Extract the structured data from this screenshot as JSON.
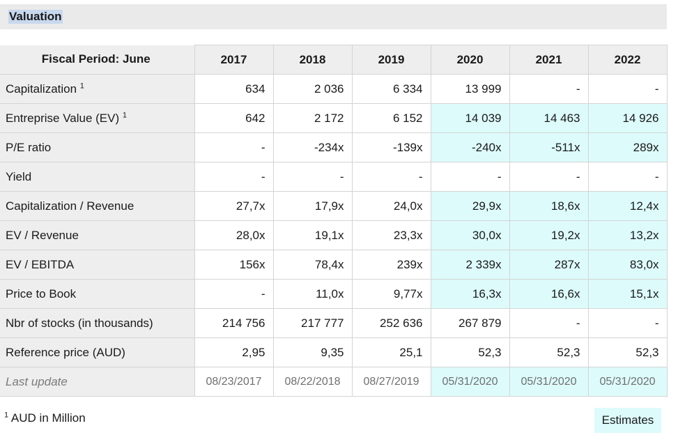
{
  "title": "Valuation",
  "fiscal_period_label": "Fiscal Period:",
  "fiscal_period_value": "June",
  "years": [
    "2017",
    "2018",
    "2019",
    "2020",
    "2021",
    "2022"
  ],
  "rows": [
    {
      "label": "Capitalization",
      "sup": "1",
      "values": [
        "634",
        "2 036",
        "6 334",
        "13 999",
        "-",
        "-"
      ],
      "estimate": [
        false,
        false,
        false,
        false,
        false,
        false
      ]
    },
    {
      "label": "Entreprise Value (EV)",
      "sup": "1",
      "values": [
        "642",
        "2 172",
        "6 152",
        "14 039",
        "14 463",
        "14 926"
      ],
      "estimate": [
        false,
        false,
        false,
        true,
        true,
        true
      ]
    },
    {
      "label": "P/E ratio",
      "sup": "",
      "values": [
        "-",
        "-234x",
        "-139x",
        "-240x",
        "-511x",
        "289x"
      ],
      "estimate": [
        false,
        false,
        false,
        true,
        true,
        true
      ]
    },
    {
      "label": "Yield",
      "sup": "",
      "values": [
        "-",
        "-",
        "-",
        "-",
        "-",
        "-"
      ],
      "estimate": [
        false,
        false,
        false,
        false,
        false,
        false
      ]
    },
    {
      "label": "Capitalization / Revenue",
      "sup": "",
      "values": [
        "27,7x",
        "17,9x",
        "24,0x",
        "29,9x",
        "18,6x",
        "12,4x"
      ],
      "estimate": [
        false,
        false,
        false,
        true,
        true,
        true
      ]
    },
    {
      "label": "EV / Revenue",
      "sup": "",
      "values": [
        "28,0x",
        "19,1x",
        "23,3x",
        "30,0x",
        "19,2x",
        "13,2x"
      ],
      "estimate": [
        false,
        false,
        false,
        true,
        true,
        true
      ]
    },
    {
      "label": "EV / EBITDA",
      "sup": "",
      "values": [
        "156x",
        "78,4x",
        "239x",
        "2 339x",
        "287x",
        "83,0x"
      ],
      "estimate": [
        false,
        false,
        false,
        true,
        true,
        true
      ]
    },
    {
      "label": "Price to Book",
      "sup": "",
      "values": [
        "-",
        "11,0x",
        "9,77x",
        "16,3x",
        "16,6x",
        "15,1x"
      ],
      "estimate": [
        false,
        false,
        false,
        true,
        true,
        true
      ]
    },
    {
      "label": "Nbr of stocks (in thousands)",
      "sup": "",
      "values": [
        "214 756",
        "217 777",
        "252 636",
        "267 879",
        "-",
        "-"
      ],
      "estimate": [
        false,
        false,
        false,
        false,
        false,
        false
      ]
    },
    {
      "label": "Reference price (AUD)",
      "sup": "",
      "values": [
        "2,95",
        "9,35",
        "25,1",
        "52,3",
        "52,3",
        "52,3"
      ],
      "estimate": [
        false,
        false,
        false,
        false,
        false,
        false
      ]
    }
  ],
  "last_update": {
    "label": "Last update",
    "values": [
      "08/23/2017",
      "08/22/2018",
      "08/27/2019",
      "05/31/2020",
      "05/31/2020",
      "05/31/2020"
    ],
    "estimate": [
      false,
      false,
      false,
      true,
      true,
      true
    ]
  },
  "footnote_mark": "1",
  "footnote_text": "AUD in Million",
  "estimates_label": "Estimates",
  "colors": {
    "estimate_bg": "#ddfbfb",
    "header_bg": "#eeeeee",
    "title_bg": "#eaeaea",
    "title_highlight": "#c7d8ee"
  }
}
